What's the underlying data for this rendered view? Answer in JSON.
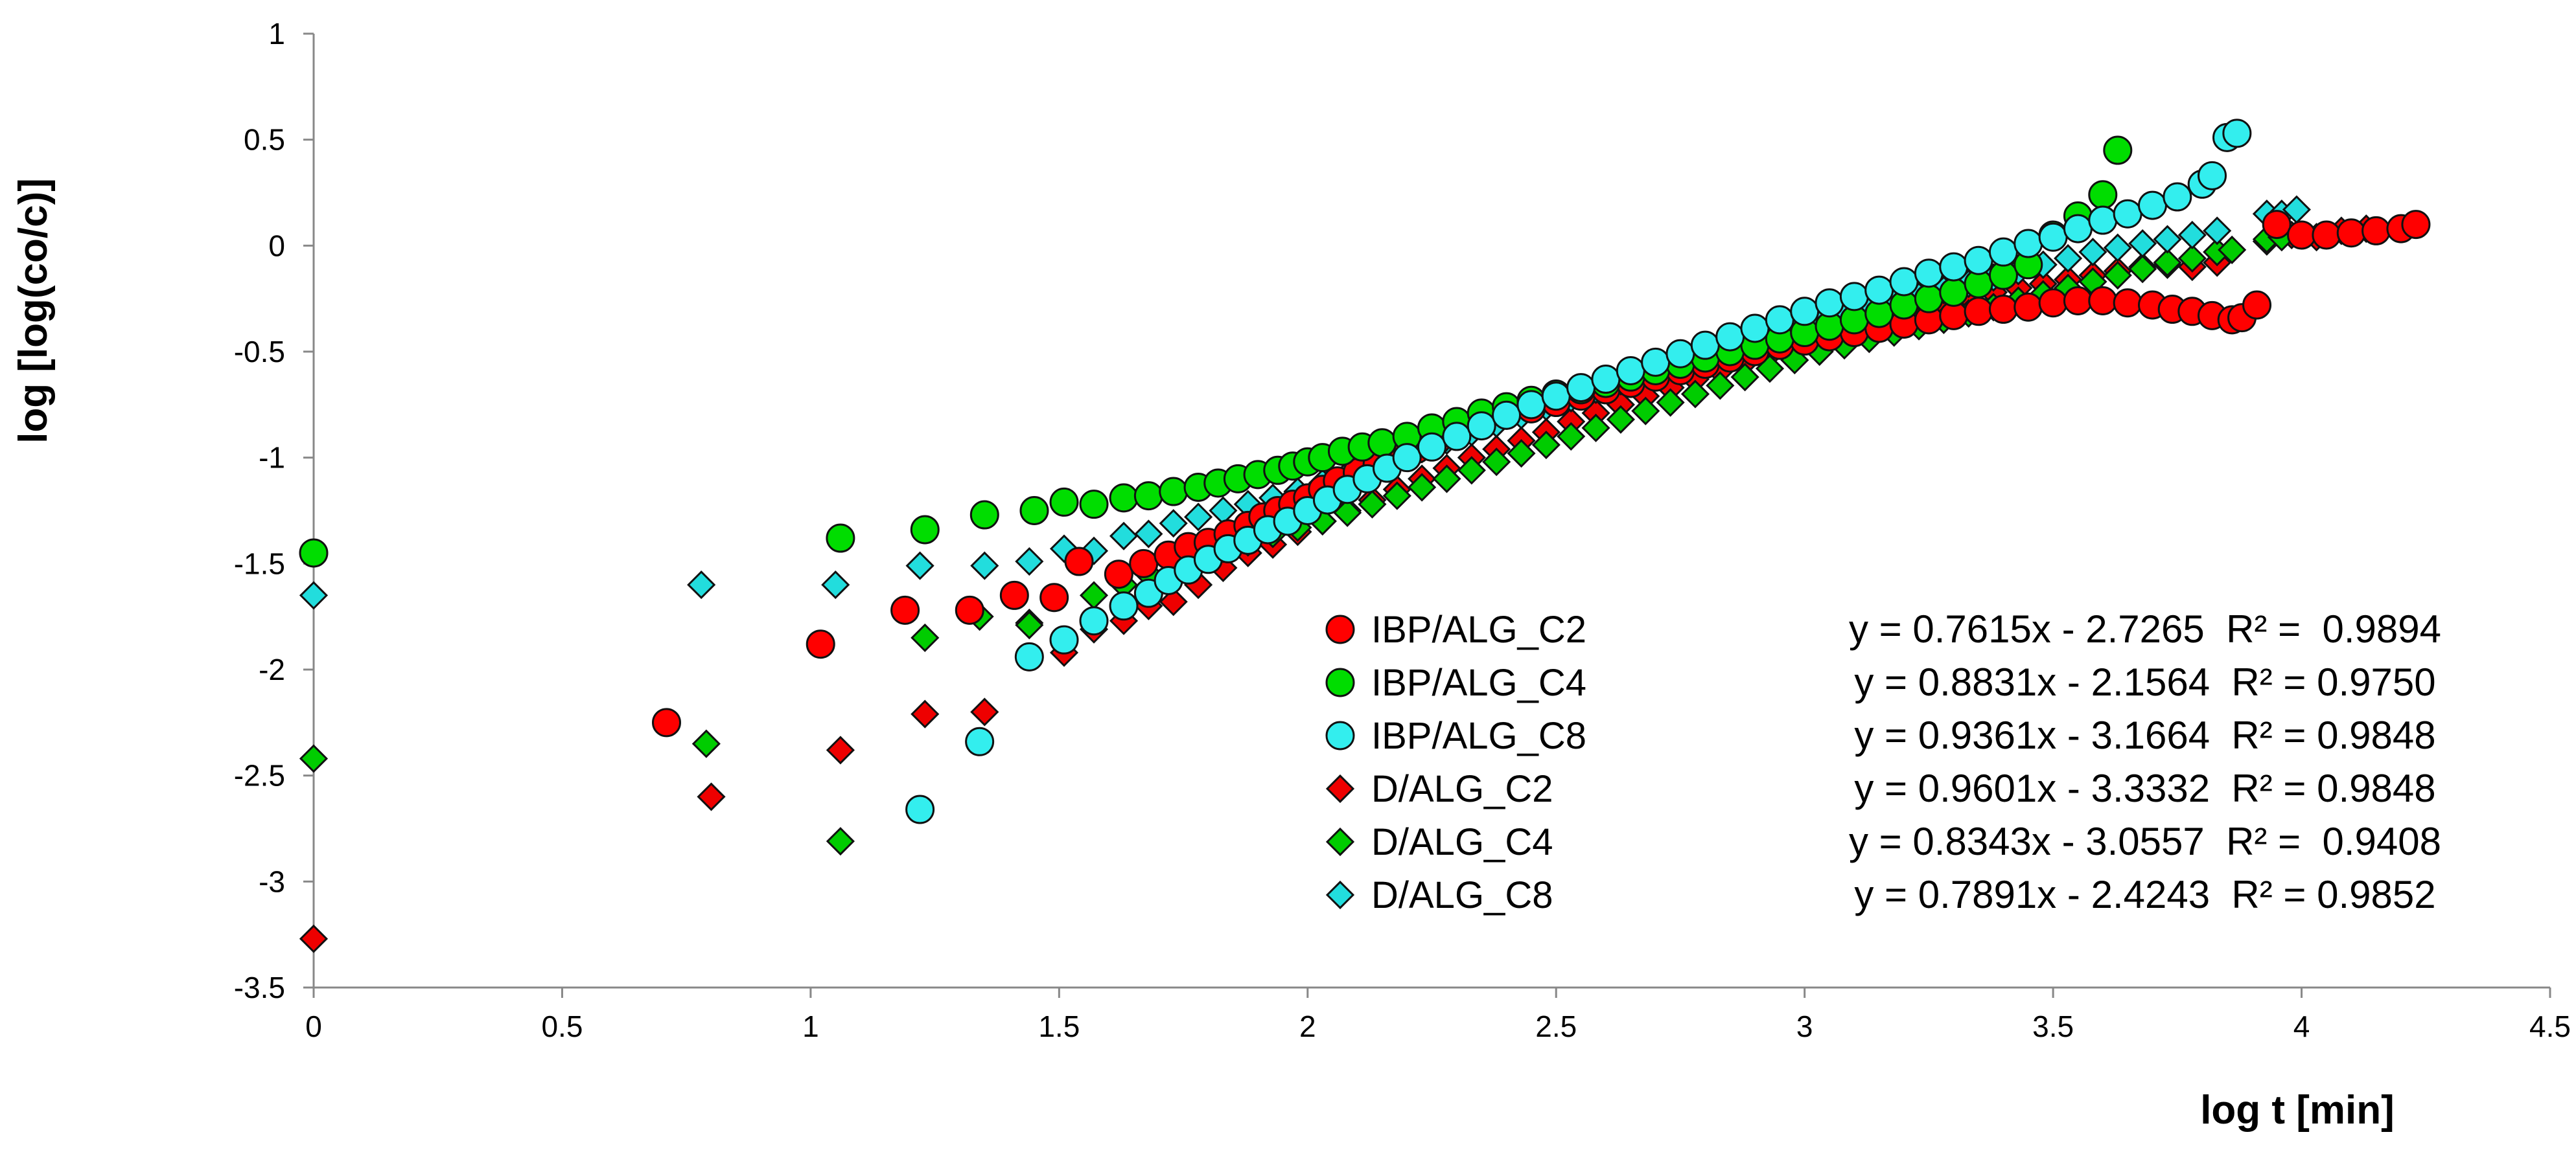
{
  "chart_data": {
    "type": "scatter",
    "title": "",
    "xlabel": "log t [min]",
    "ylabel": "log [log(co/c)]",
    "xlim": [
      0,
      4.5
    ],
    "ylim": [
      -3.5,
      1
    ],
    "xticks": [
      "0",
      "0.5",
      "1",
      "1.5",
      "2",
      "2.5",
      "3",
      "3.5",
      "4",
      "4.5"
    ],
    "yticks": [
      "1",
      "0.5",
      "0",
      "-0.5",
      "-1",
      "-1.5",
      "-2",
      "-2.5",
      "-3",
      "-3.5"
    ],
    "grid": false,
    "legend_position": "bottom-center",
    "series": [
      {
        "name": "IBP/ALG_C2",
        "marker": "circle",
        "color": "#ff0000",
        "equation": "y = 0.7615x - 2.7265  R² =  0.9894",
        "x": [
          0.71,
          1.02,
          1.19,
          1.32,
          1.41,
          1.49,
          1.54,
          1.62,
          1.67,
          1.72,
          1.76,
          1.8,
          1.84,
          1.88,
          1.91,
          1.94,
          1.97,
          2.0,
          2.03,
          2.06,
          2.1,
          2.14,
          2.18,
          2.22,
          2.26,
          2.3,
          2.35,
          2.4,
          2.45,
          2.5,
          2.55,
          2.6,
          2.65,
          2.7,
          2.75,
          2.8,
          2.85,
          2.9,
          2.95,
          3.0,
          3.05,
          3.1,
          3.15,
          3.2,
          3.25,
          3.3,
          3.35,
          3.4,
          3.45,
          3.5,
          3.55,
          3.6,
          3.65,
          3.7,
          3.74,
          3.78,
          3.82,
          3.86,
          3.88,
          3.91,
          3.95,
          4.0,
          4.05,
          4.1,
          4.15,
          4.2,
          4.23
        ],
        "y": [
          -2.25,
          -1.88,
          -1.72,
          -1.72,
          -1.65,
          -1.66,
          -1.49,
          -1.55,
          -1.5,
          -1.46,
          -1.42,
          -1.4,
          -1.36,
          -1.32,
          -1.28,
          -1.25,
          -1.22,
          -1.19,
          -1.15,
          -1.11,
          -1.07,
          -1.03,
          -0.99,
          -0.96,
          -0.92,
          -0.88,
          -0.84,
          -0.8,
          -0.77,
          -0.74,
          -0.71,
          -0.68,
          -0.65,
          -0.62,
          -0.59,
          -0.56,
          -0.53,
          -0.5,
          -0.47,
          -0.45,
          -0.43,
          -0.41,
          -0.39,
          -0.37,
          -0.35,
          -0.33,
          -0.31,
          -0.3,
          -0.29,
          -0.27,
          -0.26,
          -0.26,
          -0.27,
          -0.28,
          -0.3,
          -0.31,
          -0.33,
          -0.35,
          -0.34,
          -0.28,
          0.1,
          0.05,
          0.05,
          0.06,
          0.07,
          0.08,
          0.1
        ]
      },
      {
        "name": "IBP/ALG_C4",
        "marker": "circle",
        "color": "#00dd00",
        "equation": "y = 0.8831x - 2.1564  R² = 0.9750",
        "x": [
          0.0,
          1.06,
          1.23,
          1.35,
          1.45,
          1.51,
          1.57,
          1.63,
          1.68,
          1.73,
          1.78,
          1.82,
          1.86,
          1.9,
          1.94,
          1.97,
          2.0,
          2.03,
          2.07,
          2.11,
          2.15,
          2.2,
          2.25,
          2.3,
          2.35,
          2.4,
          2.45,
          2.5,
          2.55,
          2.6,
          2.65,
          2.7,
          2.75,
          2.8,
          2.85,
          2.9,
          2.95,
          3.0,
          3.05,
          3.1,
          3.15,
          3.2,
          3.25,
          3.3,
          3.35,
          3.4,
          3.45,
          3.5,
          3.55,
          3.6,
          3.63
        ],
        "y": [
          -1.45,
          -1.38,
          -1.34,
          -1.27,
          -1.25,
          -1.21,
          -1.22,
          -1.19,
          -1.18,
          -1.16,
          -1.14,
          -1.12,
          -1.1,
          -1.08,
          -1.06,
          -1.04,
          -1.02,
          -1.0,
          -0.97,
          -0.95,
          -0.93,
          -0.9,
          -0.86,
          -0.83,
          -0.79,
          -0.76,
          -0.73,
          -0.7,
          -0.68,
          -0.65,
          -0.62,
          -0.59,
          -0.56,
          -0.53,
          -0.5,
          -0.47,
          -0.44,
          -0.41,
          -0.38,
          -0.35,
          -0.32,
          -0.28,
          -0.25,
          -0.22,
          -0.18,
          -0.14,
          -0.09,
          0.05,
          0.14,
          0.24,
          0.45
        ]
      },
      {
        "name": "IBP/ALG_C8",
        "marker": "circle",
        "color": "#33eeee",
        "equation": "y = 0.9361x - 3.1664  R² = 0.9848",
        "x": [
          1.22,
          1.34,
          1.44,
          1.51,
          1.57,
          1.63,
          1.68,
          1.72,
          1.76,
          1.8,
          1.84,
          1.88,
          1.92,
          1.96,
          2.0,
          2.04,
          2.08,
          2.12,
          2.16,
          2.2,
          2.25,
          2.3,
          2.35,
          2.4,
          2.45,
          2.5,
          2.55,
          2.6,
          2.65,
          2.7,
          2.75,
          2.8,
          2.85,
          2.9,
          2.95,
          3.0,
          3.05,
          3.1,
          3.15,
          3.2,
          3.25,
          3.3,
          3.35,
          3.4,
          3.45,
          3.5,
          3.55,
          3.6,
          3.65,
          3.7,
          3.75,
          3.8,
          3.82,
          3.85,
          3.87
        ],
        "y": [
          -2.66,
          -2.34,
          -1.94,
          -1.86,
          -1.77,
          -1.7,
          -1.64,
          -1.58,
          -1.53,
          -1.48,
          -1.43,
          -1.39,
          -1.34,
          -1.3,
          -1.25,
          -1.2,
          -1.15,
          -1.1,
          -1.05,
          -1.0,
          -0.95,
          -0.9,
          -0.85,
          -0.8,
          -0.75,
          -0.71,
          -0.67,
          -0.63,
          -0.59,
          -0.55,
          -0.51,
          -0.47,
          -0.43,
          -0.39,
          -0.35,
          -0.31,
          -0.27,
          -0.24,
          -0.21,
          -0.17,
          -0.13,
          -0.1,
          -0.07,
          -0.03,
          0.01,
          0.04,
          0.08,
          0.12,
          0.15,
          0.19,
          0.23,
          0.29,
          0.33,
          0.51,
          0.53
        ]
      },
      {
        "name": "D/ALG_C2",
        "marker": "diamond",
        "color": "#ee0000",
        "equation": "y = 0.9601x - 3.3332  R² = 0.9848",
        "x": [
          0.0,
          0.8,
          1.06,
          1.23,
          1.35,
          1.44,
          1.51,
          1.57,
          1.63,
          1.68,
          1.73,
          1.78,
          1.83,
          1.88,
          1.93,
          1.98,
          2.03,
          2.08,
          2.13,
          2.18,
          2.23,
          2.28,
          2.33,
          2.38,
          2.43,
          2.48,
          2.53,
          2.58,
          2.63,
          2.68,
          2.73,
          2.78,
          2.83,
          2.88,
          2.93,
          2.98,
          3.03,
          3.08,
          3.13,
          3.18,
          3.23,
          3.28,
          3.33,
          3.38,
          3.43,
          3.48,
          3.53,
          3.58,
          3.63,
          3.68,
          3.73,
          3.78,
          3.83,
          3.93,
          3.98,
          4.03,
          4.08,
          4.13
        ],
        "y": [
          -3.27,
          -2.6,
          -2.38,
          -2.21,
          -2.2,
          -1.78,
          -1.92,
          -1.81,
          -1.77,
          -1.7,
          -1.68,
          -1.6,
          -1.52,
          -1.45,
          -1.41,
          -1.35,
          -1.3,
          -1.25,
          -1.2,
          -1.15,
          -1.1,
          -1.05,
          -1.0,
          -0.96,
          -0.92,
          -0.88,
          -0.83,
          -0.79,
          -0.75,
          -0.71,
          -0.67,
          -0.63,
          -0.59,
          -0.55,
          -0.51,
          -0.47,
          -0.43,
          -0.39,
          -0.36,
          -0.33,
          -0.3,
          -0.27,
          -0.24,
          -0.22,
          -0.2,
          -0.18,
          -0.16,
          -0.14,
          -0.12,
          -0.1,
          -0.09,
          -0.1,
          -0.08,
          0.02,
          0.05,
          0.04,
          0.07,
          0.08
        ]
      },
      {
        "name": "D/ALG_C4",
        "marker": "diamond",
        "color": "#00cc00",
        "equation": "y = 0.8343x - 3.0557  R² =  0.9408",
        "x": [
          0.0,
          0.79,
          1.06,
          1.23,
          1.34,
          1.44,
          1.57,
          1.63,
          1.68,
          1.73,
          1.78,
          1.83,
          1.88,
          1.93,
          1.98,
          2.03,
          2.08,
          2.13,
          2.18,
          2.23,
          2.28,
          2.33,
          2.38,
          2.43,
          2.48,
          2.53,
          2.58,
          2.63,
          2.68,
          2.73,
          2.78,
          2.83,
          2.88,
          2.93,
          2.98,
          3.03,
          3.08,
          3.13,
          3.18,
          3.23,
          3.28,
          3.33,
          3.38,
          3.43,
          3.48,
          3.53,
          3.58,
          3.63,
          3.68,
          3.73,
          3.78,
          3.83,
          3.86,
          3.93,
          3.96
        ],
        "y": [
          -2.42,
          -2.35,
          -2.81,
          -1.85,
          -1.75,
          -1.79,
          -1.65,
          -1.6,
          -1.55,
          -1.5,
          -1.47,
          -1.43,
          -1.4,
          -1.36,
          -1.33,
          -1.3,
          -1.26,
          -1.22,
          -1.18,
          -1.14,
          -1.1,
          -1.06,
          -1.02,
          -0.98,
          -0.94,
          -0.9,
          -0.86,
          -0.82,
          -0.78,
          -0.74,
          -0.7,
          -0.66,
          -0.62,
          -0.58,
          -0.54,
          -0.5,
          -0.47,
          -0.44,
          -0.41,
          -0.38,
          -0.35,
          -0.32,
          -0.29,
          -0.26,
          -0.23,
          -0.2,
          -0.17,
          -0.14,
          -0.11,
          -0.08,
          -0.06,
          -0.03,
          -0.02,
          0.03,
          0.04
        ]
      },
      {
        "name": "D/ALG_C8",
        "marker": "diamond",
        "color": "#22dddd",
        "equation": "y = 0.7891x - 2.4243  R² = 0.9852",
        "x": [
          0.0,
          0.78,
          1.05,
          1.22,
          1.35,
          1.44,
          1.51,
          1.57,
          1.63,
          1.68,
          1.73,
          1.78,
          1.83,
          1.88,
          1.93,
          1.98,
          2.03,
          2.08,
          2.13,
          2.18,
          2.23,
          2.28,
          2.33,
          2.38,
          2.43,
          2.48,
          2.53,
          2.58,
          2.63,
          2.68,
          2.73,
          2.78,
          2.83,
          2.88,
          2.93,
          2.98,
          3.03,
          3.08,
          3.13,
          3.18,
          3.23,
          3.28,
          3.33,
          3.38,
          3.43,
          3.48,
          3.53,
          3.58,
          3.63,
          3.68,
          3.73,
          3.78,
          3.83,
          3.93,
          3.96,
          3.99
        ],
        "y": [
          -1.65,
          -1.6,
          -1.6,
          -1.51,
          -1.51,
          -1.49,
          -1.43,
          -1.44,
          -1.37,
          -1.36,
          -1.31,
          -1.28,
          -1.25,
          -1.22,
          -1.19,
          -1.16,
          -1.12,
          -1.08,
          -1.04,
          -1.0,
          -0.96,
          -0.92,
          -0.88,
          -0.84,
          -0.8,
          -0.76,
          -0.72,
          -0.68,
          -0.64,
          -0.6,
          -0.56,
          -0.52,
          -0.48,
          -0.45,
          -0.42,
          -0.39,
          -0.36,
          -0.33,
          -0.3,
          -0.27,
          -0.24,
          -0.21,
          -0.18,
          -0.15,
          -0.12,
          -0.09,
          -0.06,
          -0.03,
          -0.01,
          0.01,
          0.03,
          0.05,
          0.07,
          0.15,
          0.15,
          0.17
        ]
      }
    ]
  }
}
